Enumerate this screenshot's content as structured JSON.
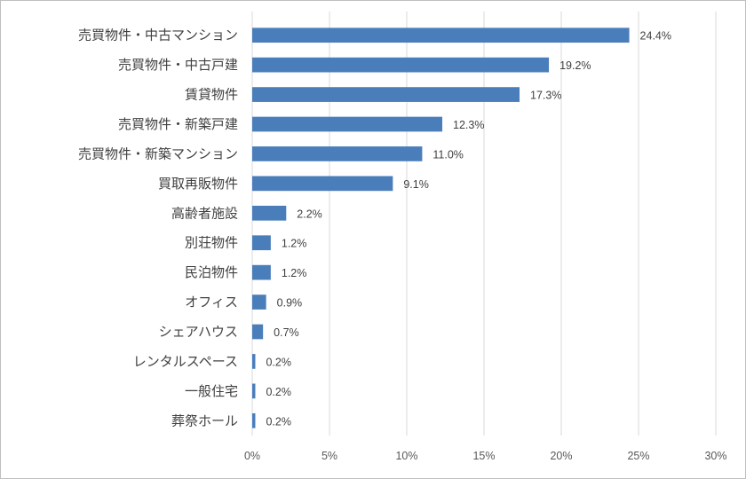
{
  "chart_data": {
    "type": "bar",
    "orientation": "horizontal",
    "categories": [
      "売買物件・中古マンション",
      "売買物件・中古戸建",
      "賃貸物件",
      "売買物件・新築戸建",
      "売買物件・新築マンション",
      "買取再販物件",
      "高齢者施設",
      "別荘物件",
      "民泊物件",
      "オフィス",
      "シェアハウス",
      "レンタルスペース",
      "一般住宅",
      "葬祭ホール"
    ],
    "values": [
      24.4,
      19.2,
      17.3,
      12.3,
      11.0,
      9.1,
      2.2,
      1.2,
      1.2,
      0.9,
      0.7,
      0.2,
      0.2,
      0.2
    ],
    "data_labels": [
      "24.4%",
      "19.2%",
      "17.3%",
      "12.3%",
      "11.0%",
      "9.1%",
      "2.2%",
      "1.2%",
      "1.2%",
      "0.9%",
      "0.7%",
      "0.2%",
      "0.2%",
      "0.2%"
    ],
    "xlim": [
      0,
      30
    ],
    "xticks": [
      0,
      5,
      10,
      15,
      20,
      25,
      30
    ],
    "xtick_labels": [
      "0%",
      "5%",
      "10%",
      "15%",
      "20%",
      "25%",
      "30%"
    ],
    "title": "",
    "xlabel": "",
    "ylabel": "",
    "grid": "vertical",
    "bar_color": "#4a7ebb"
  }
}
